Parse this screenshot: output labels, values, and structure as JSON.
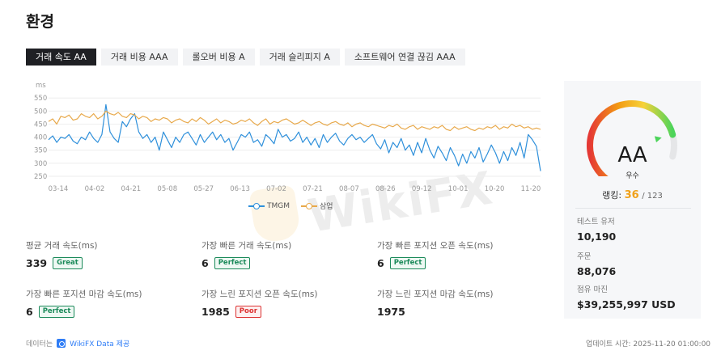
{
  "page": {
    "title": "환경"
  },
  "tabs": [
    {
      "label": "거래 속도 AA",
      "active": true
    },
    {
      "label": "거래 비용 AAA",
      "active": false
    },
    {
      "label": "롤오버 비용 A",
      "active": false
    },
    {
      "label": "거래 슬리피지 A",
      "active": false
    },
    {
      "label": "소프트웨어 연결 끊김 AAA",
      "active": false
    }
  ],
  "chart_data": {
    "type": "line",
    "ylabel": "ms",
    "y_ticks": [
      550,
      500,
      450,
      400,
      350,
      300,
      250
    ],
    "ylim": [
      250,
      560
    ],
    "x_tick_labels": [
      "03-14",
      "04-02",
      "04-21",
      "05-08",
      "05-27",
      "06-13",
      "07-02",
      "07-21",
      "08-07",
      "08-26",
      "09-12",
      "10-01",
      "10-20",
      "11-20"
    ],
    "grid": true,
    "legend_position": "bottom",
    "series": [
      {
        "name": "TMGM",
        "color": "#2f90db",
        "values": [
          390,
          405,
          380,
          400,
          395,
          410,
          385,
          375,
          400,
          390,
          420,
          395,
          380,
          410,
          525,
          420,
          395,
          380,
          460,
          440,
          470,
          490,
          420,
          395,
          410,
          380,
          400,
          350,
          420,
          390,
          360,
          400,
          380,
          410,
          420,
          395,
          370,
          410,
          380,
          400,
          420,
          390,
          410,
          380,
          395,
          350,
          380,
          410,
          400,
          420,
          380,
          390,
          365,
          410,
          395,
          375,
          430,
          400,
          410,
          385,
          395,
          420,
          380,
          400,
          370,
          395,
          360,
          410,
          380,
          400,
          415,
          385,
          370,
          395,
          410,
          390,
          400,
          380,
          395,
          410,
          375,
          355,
          390,
          340,
          380,
          360,
          395,
          350,
          370,
          330,
          380,
          340,
          395,
          350,
          320,
          365,
          340,
          310,
          360,
          330,
          290,
          335,
          300,
          345,
          320,
          360,
          305,
          335,
          370,
          340,
          300,
          345,
          310,
          360,
          330,
          380,
          320,
          410,
          390,
          365,
          270
        ]
      },
      {
        "name": "삼업",
        "color": "#e8a94b",
        "values": [
          460,
          470,
          450,
          480,
          475,
          485,
          465,
          470,
          490,
          480,
          475,
          490,
          470,
          480,
          500,
          490,
          485,
          495,
          480,
          475,
          490,
          485,
          470,
          480,
          475,
          460,
          470,
          465,
          475,
          470,
          455,
          465,
          470,
          460,
          455,
          470,
          460,
          475,
          465,
          450,
          460,
          470,
          455,
          465,
          460,
          450,
          455,
          465,
          460,
          470,
          455,
          445,
          460,
          470,
          450,
          460,
          455,
          465,
          470,
          460,
          450,
          455,
          465,
          455,
          445,
          455,
          460,
          450,
          445,
          455,
          460,
          450,
          445,
          455,
          440,
          450,
          455,
          445,
          440,
          450,
          445,
          440,
          435,
          445,
          440,
          450,
          435,
          430,
          440,
          445,
          430,
          440,
          435,
          430,
          440,
          435,
          445,
          430,
          425,
          440,
          430,
          435,
          440,
          430,
          425,
          435,
          430,
          440,
          435,
          445,
          430,
          440,
          435,
          450,
          440,
          445,
          435,
          440,
          430,
          435,
          430
        ]
      }
    ]
  },
  "stats": [
    {
      "label": "평균 거래 속도(ms)",
      "value": "339",
      "badge": "Great",
      "badge_type": "good"
    },
    {
      "label": "가장 빠른 거래 속도(ms)",
      "value": "6",
      "badge": "Perfect",
      "badge_type": "good"
    },
    {
      "label": "가장 빠른 포지션 오픈 속도(ms)",
      "value": "6",
      "badge": "Perfect",
      "badge_type": "good"
    },
    {
      "label": "가장 빠른 포지션 마감 속도(ms)",
      "value": "6",
      "badge": "Perfect",
      "badge_type": "good"
    },
    {
      "label": "가장 느린 포지션 오픈 속도(ms)",
      "value": "1985",
      "badge": "Poor",
      "badge_type": "poor"
    },
    {
      "label": "가장 느린 포지션 마감 속도(ms)",
      "value": "1975",
      "badge": "",
      "badge_type": ""
    }
  ],
  "side_card": {
    "grade": "AA",
    "grade_sub": "우수",
    "ranking_label": "랭킹:",
    "rank": "36",
    "rank_total": "/ 123",
    "gauge_level": 0.88,
    "items": [
      {
        "label": "테스트 유저",
        "value": "10,190"
      },
      {
        "label": "주문",
        "value": "88,076"
      },
      {
        "label": "점유 마진",
        "value": "$39,255,997 USD"
      }
    ]
  },
  "footer": {
    "source_prefix": "데이터는",
    "source_link": "WikiFX Data 제공",
    "updated": "업데이트 시간:  2025-11-20 01:00:00"
  },
  "watermark": "WikiFX"
}
